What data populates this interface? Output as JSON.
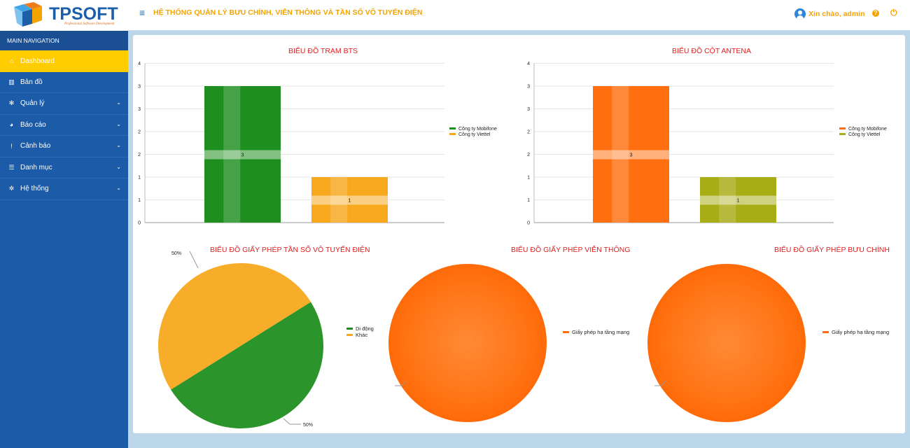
{
  "app": {
    "logo_text": "TPSOFT",
    "logo_sub": "Professional Software Development",
    "title": "HỆ THỐNG QUẢN LÝ BƯU CHÍNH, VIỄN THÔNG VÀ TẦN SỐ VÔ TUYẾN ĐIỆN",
    "greeting": "Xin chào, admin",
    "help_glyph": "?",
    "power_glyph": "⏻",
    "menu_glyph": "≡"
  },
  "sidebar": {
    "header": "MAIN NAVIGATION",
    "items": [
      {
        "label": "Dashboard",
        "icon": "home-icon",
        "glyph": "⌂",
        "active": true,
        "has_children": false
      },
      {
        "label": "Bản đồ",
        "icon": "map-icon",
        "glyph": "▥",
        "active": false,
        "has_children": false
      },
      {
        "label": "Quản lý",
        "icon": "snowflake-icon",
        "glyph": "✻",
        "active": false,
        "has_children": true
      },
      {
        "label": "Báo cáo",
        "icon": "pie-chart-icon",
        "glyph": "◕",
        "active": false,
        "has_children": true
      },
      {
        "label": "Cảnh báo",
        "icon": "alert-circle-icon",
        "glyph": "!",
        "active": false,
        "has_children": true
      },
      {
        "label": "Danh mục",
        "icon": "list-icon",
        "glyph": "☰",
        "active": false,
        "has_children": true
      },
      {
        "label": "Hệ thống",
        "icon": "gear-icon",
        "glyph": "✲",
        "active": false,
        "has_children": true
      }
    ],
    "chevron_glyph": "⌄"
  },
  "colors": {
    "accent": "#f5a300",
    "sidebar": "#1b5ba8",
    "active": "#ffcc00",
    "title_red": "#e02020",
    "green": "#1e8e1e",
    "yellow": "#f7a81c",
    "orange": "#ff6f0f",
    "olive": "#a7ad14"
  },
  "chart_data": [
    {
      "type": "bar",
      "title": "BIỂU ĐỒ TRẠM BTS",
      "categories": [
        "Công ty Mobifone",
        "Công ty Viettel"
      ],
      "values": [
        3,
        1
      ],
      "data_labels": [
        "3",
        "1"
      ],
      "tick_labels": [
        "0",
        "1",
        "1",
        "2",
        "2",
        "3",
        "3",
        "4"
      ],
      "ylim": [
        0,
        3.5
      ],
      "colors": [
        "#1e8e1e",
        "#f7a81c"
      ],
      "legend": [
        "Công ty Mobifone",
        "Công ty Viettel"
      ],
      "legend_position": "right"
    },
    {
      "type": "bar",
      "title": "BIỂU ĐỒ CỘT ANTENA",
      "categories": [
        "Công ty Mobifone",
        "Công ty Viettel"
      ],
      "values": [
        3,
        1
      ],
      "data_labels": [
        "3",
        "1"
      ],
      "tick_labels": [
        "0",
        "1",
        "1",
        "2",
        "2",
        "3",
        "3",
        "4"
      ],
      "ylim": [
        0,
        3.5
      ],
      "colors": [
        "#ff6f0f",
        "#a7ad14"
      ],
      "legend": [
        "Công ty Mobifone",
        "Công ty Viettel"
      ],
      "legend_position": "right"
    },
    {
      "type": "pie",
      "title": "BIỂU ĐỒ GIẤY PHÉP TẦN SỐ VÔ TUYẾN ĐIỆN",
      "labels": [
        "Di động",
        "Khác"
      ],
      "values": [
        50,
        50
      ],
      "value_labels": [
        "50%",
        "50%"
      ],
      "colors": [
        "#1e8e1e",
        "#f7a81c"
      ],
      "legend_position": "right"
    },
    {
      "type": "pie",
      "title": "BIỂU ĐỒ GIẤY PHÉP VIỄN THÔNG",
      "labels": [
        "Giấy phép hạ tầng mạng"
      ],
      "values": [
        100
      ],
      "colors": [
        "#ff6f0f"
      ],
      "legend_position": "right"
    },
    {
      "type": "pie",
      "title": "BIỂU ĐỒ GIẤY PHÉP BƯU CHÍNH",
      "labels": [
        "Giấy phép hạ tầng mạng"
      ],
      "values": [
        100
      ],
      "colors": [
        "#ff6f0f"
      ],
      "legend_position": "right"
    }
  ]
}
